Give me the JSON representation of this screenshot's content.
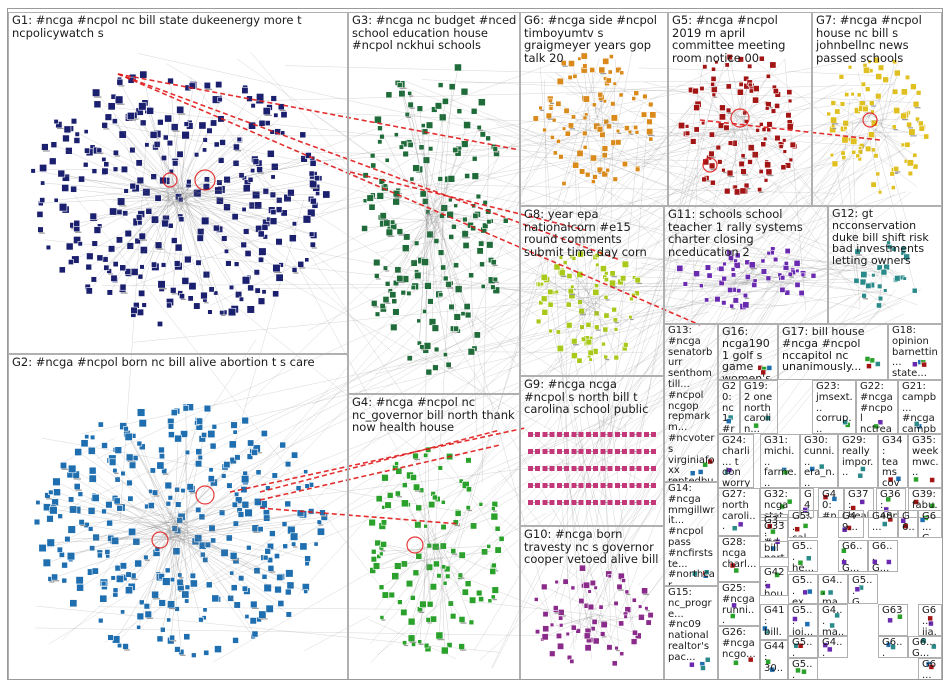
{
  "groups": [
    {
      "id": "G1",
      "label": "G1: #ncga #ncpol nc bill state dukeenergy more t ncpolicywatch s",
      "color": "#1a1f6e"
    },
    {
      "id": "G2",
      "label": "G2: #ncga #ncpol born nc bill alive abortion t s care",
      "color": "#1f6fb0"
    },
    {
      "id": "G3",
      "label": "G3: #ncga nc budget #nced school education house #ncpol nckhui schools",
      "color": "#1f6b3a"
    },
    {
      "id": "G4",
      "label": "G4: #ncga #ncpol nc nc_governor bill north thank now health house",
      "color": "#2aa12a"
    },
    {
      "id": "G5",
      "label": "G5: #ncga #ncpol 2019 m april committee meeting room notice 00",
      "color": "#a31414"
    },
    {
      "id": "G6",
      "label": "G6: #ncga side #ncpol timboyumtv s graigmeyer years gop talk 20",
      "color": "#d98a1a"
    },
    {
      "id": "G7",
      "label": "G7: #ncga #ncpol house nc bill s johnbellnc news passed schools",
      "color": "#e0c020"
    },
    {
      "id": "G8",
      "label": "G8: year epa nationalcorn #e15 round comments submit time day corn",
      "color": "#a8c81a"
    },
    {
      "id": "G9",
      "label": "G9: #ncga ncga #ncpol s north bill t carolina school public",
      "color": "#c4387a"
    },
    {
      "id": "G10",
      "label": "G10: #ncga born travesty nc s governor cooper vetoed alive bill",
      "color": "#8a2a8a"
    },
    {
      "id": "G11",
      "label": "G11: schools school teacher 1 rally systems charter closing nceducation 2",
      "color": "#6a2ab0"
    },
    {
      "id": "G12",
      "label": "G12: gt ncconservation duke bill shift risk bad investments letting owners",
      "color": "#2a8a8a"
    },
    {
      "id": "G13",
      "label": "G13: #ncga senatorburr senthomtill... #ncpol ncgop repmarkm... #ncvoters virginiafoxx reptedbudd gop",
      "color": "#555555"
    },
    {
      "id": "G14",
      "label": "G14: #ncga mmgillwrit... #ncpol pass #ncfirstste... #northcar... #sb404...",
      "color": "#555555"
    },
    {
      "id": "G15",
      "label": "G15: nc_progre... #nc09 national realtor's pac...",
      "color": "#555555"
    },
    {
      "id": "G16",
      "label": "G16: ncga1901 golf s game women's medalist u san...",
      "color": "#555555"
    },
    {
      "id": "G17",
      "label": "G17: bill house #ncga #ncpol nccapitol nc unanimously...",
      "color": "#555555"
    },
    {
      "id": "G18",
      "label": "G18: opinion barnettin... state...",
      "color": "#555555"
    },
    {
      "id": "G19",
      "label": "G19: 2 one north carolin...",
      "color": "#555555"
    },
    {
      "id": "G20",
      "label": "G20: nc 1 #ruralc... #ncga...",
      "color": "#555555"
    },
    {
      "id": "G21",
      "label": "G21: campb... #ncga campb...",
      "color": "#555555"
    },
    {
      "id": "G22",
      "label": "G22: #ncga #ncpol nctrea...",
      "color": "#555555"
    },
    {
      "id": "G23",
      "label": "G23: jmsext... corrup... gerry...",
      "color": "#555555"
    },
    {
      "id": "G24",
      "label": "G24: charli... t don worry...",
      "color": "#555555"
    },
    {
      "id": "G25",
      "label": "G25: #ncga runni...",
      "color": "#555555"
    },
    {
      "id": "G26",
      "label": "G26: #ncga ncgo...",
      "color": "#555555"
    },
    {
      "id": "G27",
      "label": "G27: north caroli...",
      "color": "#555555"
    },
    {
      "id": "G28",
      "label": "G28: ncga charl...",
      "color": "#555555"
    },
    {
      "id": "G29",
      "label": "G29: really impor...",
      "color": "#555555"
    },
    {
      "id": "G30",
      "label": "G30: cunni... era_n... ncga",
      "color": "#555555"
    },
    {
      "id": "G31",
      "label": "G31: michi... farme... #ncga",
      "color": "#555555"
    },
    {
      "id": "G32",
      "label": "G32: ncga stat...",
      "color": "#555555"
    },
    {
      "id": "G33",
      "label": "G33: bill nort...",
      "color": "#555555"
    },
    {
      "id": "G34",
      "label": "G34: teams cove...",
      "color": "#555555"
    },
    {
      "id": "G35",
      "label": "G35: week mwc...",
      "color": "#555555"
    },
    {
      "id": "G36",
      "label": "G36: app...",
      "color": "#555555"
    },
    {
      "id": "G37",
      "label": "G37: heal...",
      "color": "#555555"
    },
    {
      "id": "G39",
      "label": "G39: fabu...",
      "color": "#555555"
    },
    {
      "id": "G40",
      "label": "G40: #nc...",
      "color": "#555555"
    },
    {
      "id": "G41",
      "label": "G41: bill...",
      "color": "#555555"
    },
    {
      "id": "G42",
      "label": "G42: hou...",
      "color": "#555555"
    },
    {
      "id": "G43",
      "label": "G43: regi...",
      "color": "#555555"
    },
    {
      "id": "G44",
      "label": "G44: 30...",
      "color": "#555555"
    },
    {
      "id": "G48",
      "label": "G48...",
      "color": "#555555"
    },
    {
      "id": "G49",
      "label": "G49...",
      "color": "#555555"
    },
    {
      "id": "G63",
      "label": "G63",
      "color": "#555555"
    },
    {
      "id": "G3x",
      "label": "G3... #d... #n...",
      "color": "#555555"
    },
    {
      "id": "G4a",
      "label": "G4... bill...",
      "color": "#555555"
    },
    {
      "id": "G5a",
      "label": "G5... cal...",
      "color": "#555555"
    },
    {
      "id": "G5b",
      "label": "G5... he...",
      "color": "#555555"
    },
    {
      "id": "G5c",
      "label": "G5... ex...",
      "color": "#555555"
    },
    {
      "id": "G5d",
      "label": "G5... joi...",
      "color": "#555555"
    },
    {
      "id": "G5e",
      "label": "G5... nc...",
      "color": "#555555"
    },
    {
      "id": "G5f",
      "label": "G5... kev...",
      "color": "#555555"
    },
    {
      "id": "G4b",
      "label": "G4... ma...",
      "color": "#555555"
    },
    {
      "id": "G4c",
      "label": "G4... ma...",
      "color": "#555555"
    },
    {
      "id": "G4d",
      "label": "G4... #n...",
      "color": "#555555"
    },
    {
      "id": "G5g",
      "label": "G5... G...",
      "color": "#555555"
    },
    {
      "id": "G6a",
      "label": "G6... G...",
      "color": "#555555"
    },
    {
      "id": "G6b",
      "label": "G6... G...",
      "color": "#555555"
    },
    {
      "id": "G6c",
      "label": "G6... iia...",
      "color": "#555555"
    },
    {
      "id": "G6d",
      "label": "G6... G...",
      "color": "#555555"
    },
    {
      "id": "G6e",
      "label": "G6... G...",
      "color": "#555555"
    },
    {
      "id": "G6f",
      "label": "G6... w...",
      "color": "#555555"
    },
    {
      "id": "G6g",
      "label": "G6... G...",
      "color": "#555555"
    },
    {
      "id": "G6h",
      "label": "G6... G...",
      "color": "#555555"
    }
  ],
  "colors": {
    "background": "#ffffff",
    "box_border": "#b0b0b0",
    "edge": "#8c8c8c",
    "highlight_edge": "#e01818"
  }
}
